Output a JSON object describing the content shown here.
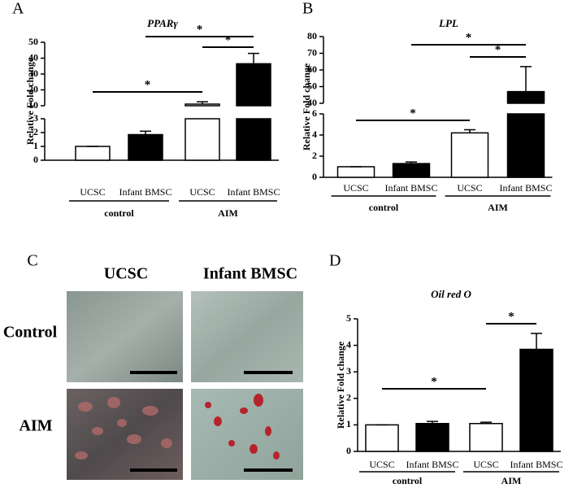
{
  "chart_data": [
    {
      "type": "bar",
      "panel_label": "A",
      "title": "PPARγ",
      "y_label": "Relative Fold change",
      "categories": [
        "UCSC",
        "Infant BMSC",
        "UCSC",
        "Infant BMSC"
      ],
      "groups": [
        {
          "label": "control",
          "span": [
            0,
            1
          ]
        },
        {
          "label": "AIM",
          "span": [
            2,
            3
          ]
        }
      ],
      "values": [
        1,
        1.85,
        11,
        36.5
      ],
      "errors": [
        0,
        0.25,
        1.5,
        6.5
      ],
      "colors": [
        "#ffffff",
        "#000000",
        "#ffffff",
        "#000000"
      ],
      "ylim": [
        0,
        50
      ],
      "y_break": [
        3,
        10
      ],
      "yticks": [
        0,
        1,
        2,
        3,
        10,
        20,
        30,
        40,
        50
      ],
      "significance": [
        {
          "span": [
            0,
            2
          ],
          "label": "*"
        },
        {
          "span": [
            1,
            3
          ],
          "label": "*"
        },
        {
          "span": [
            2,
            3
          ],
          "label": "*"
        }
      ]
    },
    {
      "type": "bar",
      "panel_label": "B",
      "title": "LPL",
      "y_label": "Relative Fold change",
      "categories": [
        "UCSC",
        "Infant BMSC",
        "UCSC",
        "Infant BMSC"
      ],
      "groups": [
        {
          "label": "control",
          "span": [
            0,
            1
          ]
        },
        {
          "label": "AIM",
          "span": [
            2,
            3
          ]
        }
      ],
      "values": [
        1,
        1.3,
        4.2,
        47
      ],
      "errors": [
        0,
        0.15,
        0.3,
        15
      ],
      "colors": [
        "#ffffff",
        "#000000",
        "#ffffff",
        "#000000"
      ],
      "ylim": [
        0,
        80
      ],
      "y_break": [
        6,
        40
      ],
      "yticks": [
        0,
        2,
        4,
        6,
        40,
        50,
        60,
        70,
        80
      ],
      "significance": [
        {
          "span": [
            0,
            2
          ],
          "label": "*"
        },
        {
          "span": [
            1,
            3
          ],
          "label": "*"
        },
        {
          "span": [
            2,
            3
          ],
          "label": "*"
        }
      ]
    },
    {
      "type": "bar",
      "panel_label": "D",
      "title": "Oil red O",
      "y_label": "Relative Fold change",
      "categories": [
        "UCSC",
        "Infant BMSC",
        "UCSC",
        "Infant BMSC"
      ],
      "groups": [
        {
          "label": "control",
          "span": [
            0,
            1
          ]
        },
        {
          "label": "AIM",
          "span": [
            2,
            3
          ]
        }
      ],
      "values": [
        1,
        1.05,
        1.05,
        3.85
      ],
      "errors": [
        0,
        0.08,
        0.05,
        0.6
      ],
      "colors": [
        "#ffffff",
        "#000000",
        "#ffffff",
        "#000000"
      ],
      "ylim": [
        0,
        5
      ],
      "yticks": [
        0,
        1,
        2,
        3,
        4,
        5
      ],
      "significance": [
        {
          "span": [
            0,
            2
          ],
          "label": "*"
        },
        {
          "span": [
            2,
            3
          ],
          "label": "*"
        }
      ]
    }
  ],
  "image_panel": {
    "panel_label": "C",
    "columns": [
      "UCSC",
      "Infant BMSC"
    ],
    "rows": [
      "Control",
      "AIM"
    ]
  }
}
